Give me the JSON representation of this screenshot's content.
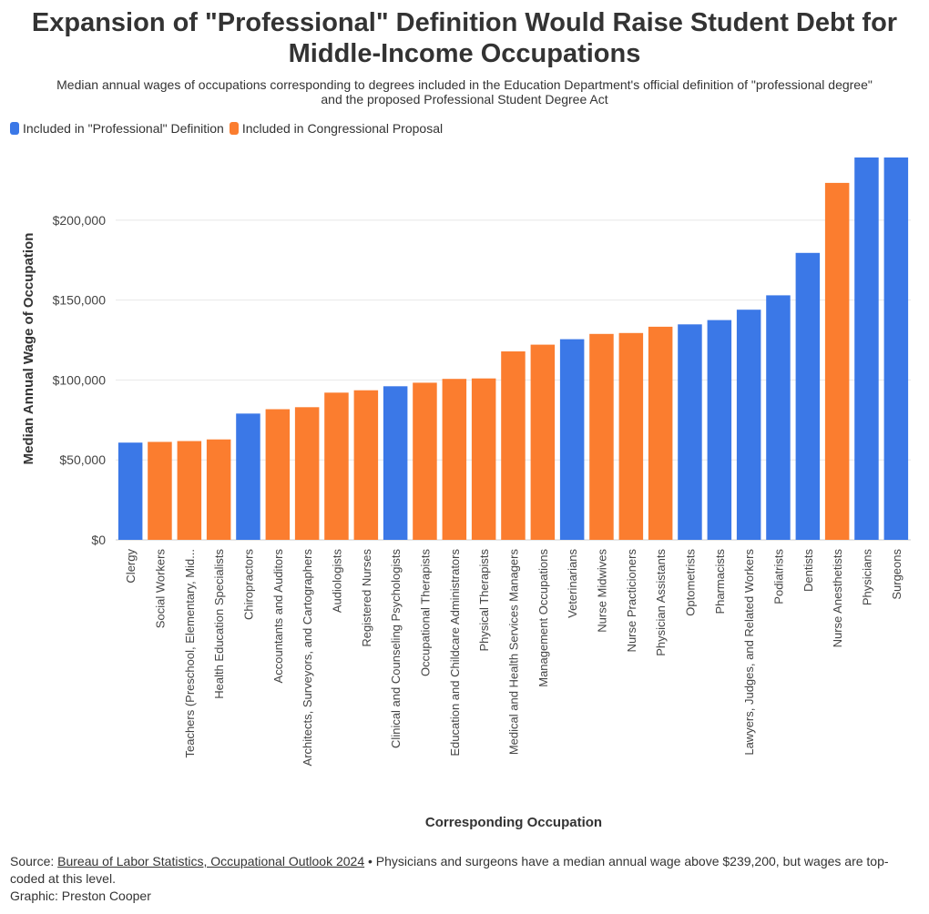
{
  "title_line1": "Expansion of \"Professional\" Definition Would Raise Student Debt for",
  "title_line2": "Middle-Income Occupations",
  "subtitle_line1": "Median annual wages of occupations corresponding to degrees included in the Education Department's official definition of \"professional degree\"",
  "subtitle_line2": "and the proposed Professional Student Degree Act",
  "legend": [
    {
      "label": "Included in \"Professional\" Definition",
      "color": "#3b78e7"
    },
    {
      "label": "Included in Congressional Proposal",
      "color": "#fb7d2f"
    }
  ],
  "footer": {
    "source_prefix": "Source: ",
    "source_link": "Bureau of Labor Statistics, Occupational Outlook 2024",
    "source_note": " • Physicians and surgeons have a median annual wage above $239,200, but wages are top-coded at this level.",
    "graphic": "Graphic: Preston Cooper"
  },
  "chart_data": {
    "type": "bar",
    "title": "Expansion of \"Professional\" Definition Would Raise Student Debt for Middle-Income Occupations",
    "xlabel": "Corresponding Occupation",
    "ylabel": "Median Annual Wage of Occupation",
    "ylim": [
      0,
      239200
    ],
    "yticks": [
      0,
      50000,
      100000,
      150000,
      200000
    ],
    "ytick_labels": [
      "$0",
      "$50,000",
      "$100,000",
      "$150,000",
      "$200,000"
    ],
    "grid": true,
    "series_colors": {
      "professional": "#3b78e7",
      "proposal": "#fb7d2f"
    },
    "categories": [
      "Clergy",
      "Social Workers",
      "Teachers (Preschool, Elementary, Mid...",
      "Health Education Specialists",
      "Chiropractors",
      "Accountants and Auditors",
      "Architects, Surveyors, and Cartographers",
      "Audiologists",
      "Registered Nurses",
      "Clinical and Counseling Psychologists",
      "Occupational Therapists",
      "Education and Childcare Administrators",
      "Physical Therapists",
      "Medical and Health Services Managers",
      "Management Occupations",
      "Veterinarians",
      "Nurse Midwives",
      "Nurse Practicioners",
      "Physician Assistants",
      "Optometrists",
      "Pharmacists",
      "Lawyers, Judges, and Related Workers",
      "Podiatrists",
      "Dentists",
      "Nurse Anesthetists",
      "Physicians",
      "Surgeons"
    ],
    "values": [
      60800,
      61300,
      61800,
      62800,
      79000,
      81700,
      83000,
      92100,
      93600,
      96100,
      98300,
      100700,
      101000,
      117900,
      122100,
      125500,
      128800,
      129400,
      133300,
      134800,
      137500,
      144000,
      153000,
      179500,
      223300,
      239200,
      239200
    ],
    "groups": [
      "professional",
      "proposal",
      "proposal",
      "proposal",
      "professional",
      "proposal",
      "proposal",
      "proposal",
      "proposal",
      "professional",
      "proposal",
      "proposal",
      "proposal",
      "proposal",
      "proposal",
      "professional",
      "proposal",
      "proposal",
      "proposal",
      "professional",
      "professional",
      "professional",
      "professional",
      "professional",
      "proposal",
      "professional",
      "professional"
    ]
  }
}
